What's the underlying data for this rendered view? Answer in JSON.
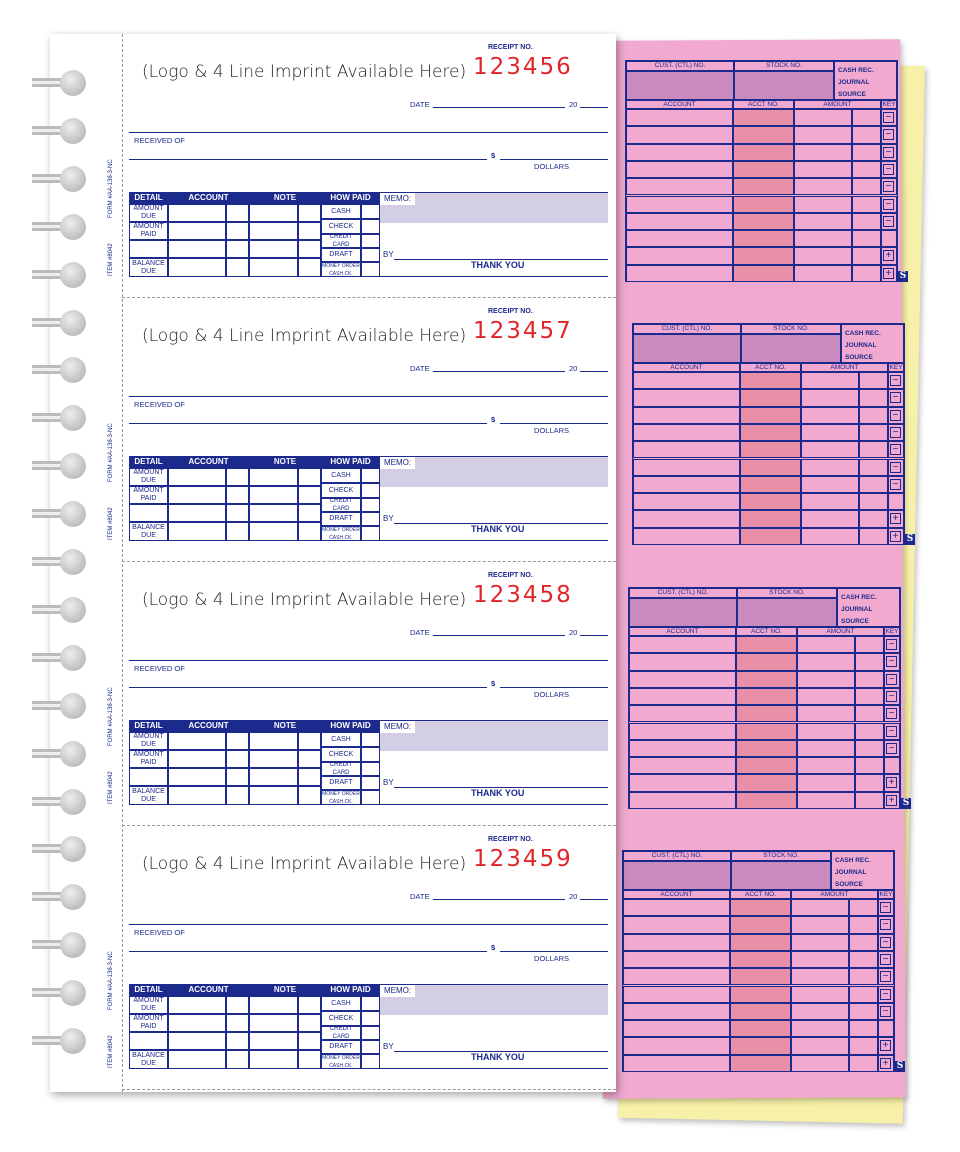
{
  "receipt_labels": {
    "receipt_no": "RECEIPT NO.",
    "logo_imprint": "(Logo & 4 Line Imprint Available Here)",
    "date": "DATE",
    "year_prefix": "20",
    "received_of": "RECEIVED OF",
    "dollar_sign": "$",
    "dollars": "DOLLARS",
    "form_code": "FORM #AA-138-3-NC",
    "item_code": "ITEM #8042",
    "table_headers": [
      "DETAIL",
      "ACCOUNT",
      "NOTE",
      "HOW PAID"
    ],
    "detail_rows": [
      "AMOUNT DUE",
      "AMOUNT PAID",
      "",
      "BALANCE DUE"
    ],
    "how_paid": [
      "CASH",
      "CHECK",
      "CREDIT CARD",
      "DRAFT",
      "MONEY ORDER",
      "CASH CK."
    ],
    "memo": "MEMO:",
    "by": "BY",
    "thank_you": "THANK YOU"
  },
  "receipts": [
    {
      "number": "123456"
    },
    {
      "number": "123457"
    },
    {
      "number": "123458"
    },
    {
      "number": "123459"
    }
  ],
  "stub_labels": {
    "cust_no": "CUST. (CTL) NO.",
    "stock_no": "STOCK NO.",
    "cash_rec": "CASH REC.",
    "journal": "JOURNAL",
    "source": "SOURCE",
    "account": "ACCOUNT",
    "acct_no": "ACCT NO.",
    "amount": "AMOUNT",
    "key": "KEY",
    "s_badge": "S"
  },
  "key_symbols": [
    "minus",
    "minus",
    "minus",
    "minus",
    "minus",
    "minus",
    "minus",
    "blank",
    "plus",
    "plus"
  ],
  "colors": {
    "ink": "#1b2a8c",
    "number_red": "#e0262c",
    "pink_copy": "#f1a9cf",
    "yellow_copy": "#f7f0a8",
    "memo_fill": "#d3cde6"
  }
}
